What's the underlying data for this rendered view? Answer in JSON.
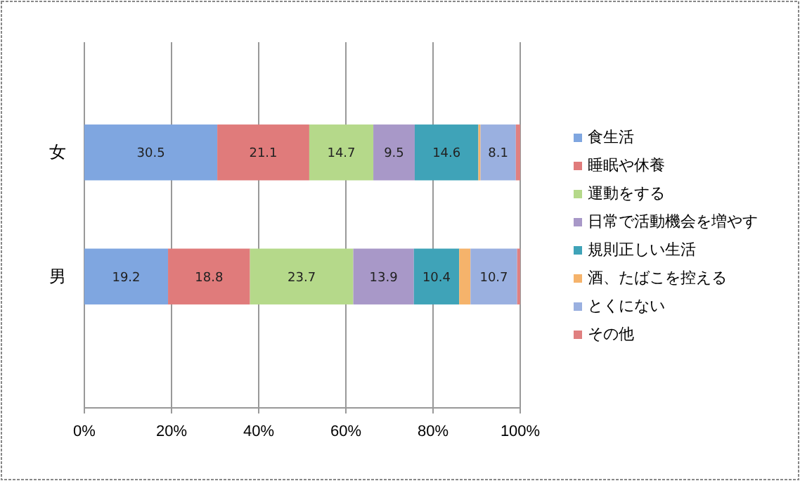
{
  "chart_data": {
    "type": "bar",
    "orientation": "horizontal",
    "stacked": true,
    "categories": [
      "女",
      "男"
    ],
    "series": [
      {
        "name": "食生活",
        "color": "#7fa6e0",
        "values": [
          30.5,
          19.2
        ],
        "value_labels": [
          "30.5",
          "19.2"
        ]
      },
      {
        "name": "睡眠や休養",
        "color": "#e07b7b",
        "values": [
          21.1,
          18.8
        ],
        "value_labels": [
          "21.1",
          "18.8"
        ]
      },
      {
        "name": "運動をする",
        "color": "#b5d98a",
        "values": [
          14.7,
          23.7
        ],
        "value_labels": [
          "14.7",
          "23.7"
        ]
      },
      {
        "name": "日常で活動機会を増やす",
        "color": "#a898c8",
        "values": [
          9.5,
          13.9
        ],
        "value_labels": [
          "9.5",
          "13.9"
        ]
      },
      {
        "name": "規則正しい生活",
        "color": "#3fa3b8",
        "values": [
          14.6,
          10.4
        ],
        "value_labels": [
          "14.6",
          "10.4"
        ]
      },
      {
        "name": "酒、たばこを控える",
        "color": "#f5b36b",
        "values": [
          0.5,
          2.6
        ],
        "value_labels": [
          null,
          null
        ]
      },
      {
        "name": "とくにない",
        "color": "#9ab0e0",
        "values": [
          8.1,
          10.7
        ],
        "value_labels": [
          "8.1",
          "10.7"
        ]
      },
      {
        "name": "その他",
        "color": "#e08080",
        "values": [
          1.0,
          0.7
        ],
        "value_labels": [
          null,
          null
        ]
      }
    ],
    "xlim": [
      0,
      100
    ],
    "xticks": [
      {
        "value": 0,
        "label": "0%"
      },
      {
        "value": 20,
        "label": "20%"
      },
      {
        "value": 40,
        "label": "40%"
      },
      {
        "value": 60,
        "label": "60%"
      },
      {
        "value": 80,
        "label": "80%"
      },
      {
        "value": 100,
        "label": "100%"
      }
    ],
    "grid": "x",
    "legend": "right"
  }
}
